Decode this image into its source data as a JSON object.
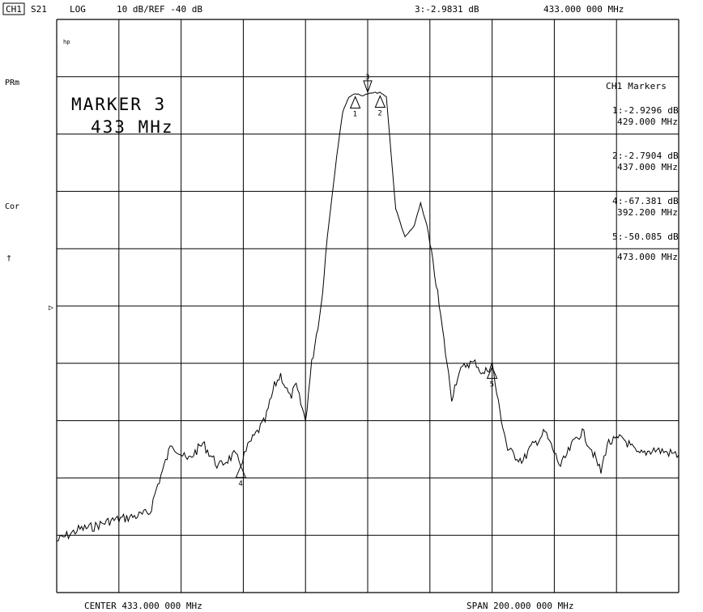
{
  "header": {
    "channel": "CH1",
    "param": "S21",
    "format": "LOG",
    "scale": "10 dB/REF -40 dB",
    "active_marker_readout": "3:-2.9831 dB",
    "active_marker_freq": "433.000 000 MHz"
  },
  "side": {
    "hp": "hp",
    "prm": "PRm",
    "cor": "Cor",
    "dagger": "†",
    "ref_arrow": "▷"
  },
  "annotation": {
    "line1": "MARKER 3",
    "line2": "433 MHz"
  },
  "marker_table": {
    "title": "CH1 Markers",
    "entries": [
      {
        "id": "1",
        "value": "1:-2.9296 dB",
        "freq": "429.000 MHz"
      },
      {
        "id": "2",
        "value": "2:-2.7904 dB",
        "freq": "437.000 MHz"
      },
      {
        "id": "4",
        "value": "4:-67.381 dB",
        "freq": "392.200 MHz"
      },
      {
        "id": "5",
        "value": "5:-50.085 dB",
        "freq": "473.000 MHz"
      }
    ]
  },
  "footer": {
    "center": "CENTER 433.000 000 MHz",
    "span": "SPAN 200.000 000 MHz"
  },
  "chart_data": {
    "type": "line",
    "grid": true,
    "x_divisions": 10,
    "y_divisions": 10,
    "x": [
      333,
      340,
      345,
      350,
      355,
      360,
      363,
      365,
      370,
      375,
      380,
      385,
      390,
      392.2,
      395,
      400,
      403,
      405,
      408,
      410,
      413,
      415,
      418,
      420,
      423,
      425,
      427,
      429,
      431,
      433,
      435,
      437,
      439,
      440,
      442,
      445,
      448,
      450,
      452,
      455,
      458,
      460,
      462,
      465,
      468,
      470,
      473,
      475,
      478,
      480,
      483,
      485,
      490,
      495,
      500,
      502,
      505,
      508,
      510,
      515,
      520,
      525,
      533
    ],
    "y": [
      -81,
      -79,
      -78.5,
      -77.5,
      -77,
      -76.5,
      -76,
      -72,
      -64,
      -67,
      -64,
      -68,
      -66,
      -67.4,
      -64,
      -60,
      -54,
      -52,
      -56,
      -54,
      -60,
      -50,
      -40,
      -28,
      -14,
      -6,
      -3.5,
      -2.9,
      -3.3,
      -3.0,
      -2.8,
      -2.8,
      -3.5,
      -10,
      -23,
      -28,
      -26,
      -22,
      -26,
      -36,
      -48,
      -56,
      -52,
      -50,
      -50,
      -52,
      -50.1,
      -57,
      -65,
      -66,
      -67,
      -65,
      -62,
      -68,
      -63,
      -62,
      -65,
      -69,
      -64,
      -63,
      -66,
      -65,
      -66
    ],
    "xlim": [
      333,
      533
    ],
    "ylim": [
      -90,
      10
    ],
    "markers": [
      {
        "id": "1",
        "x": 429,
        "y": -2.9296
      },
      {
        "id": "2",
        "x": 437,
        "y": -2.7904
      },
      {
        "id": "3",
        "x": 433,
        "y": -2.9831
      },
      {
        "id": "4",
        "x": 392.2,
        "y": -67.381
      },
      {
        "id": "5",
        "x": 473,
        "y": -50.085
      }
    ]
  }
}
